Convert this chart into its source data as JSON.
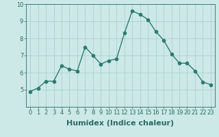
{
  "x": [
    0,
    1,
    2,
    3,
    4,
    5,
    6,
    7,
    8,
    9,
    10,
    11,
    12,
    13,
    14,
    15,
    16,
    17,
    18,
    19,
    20,
    21,
    22,
    23
  ],
  "y": [
    4.9,
    5.1,
    5.5,
    5.5,
    6.4,
    6.2,
    6.1,
    7.5,
    7.0,
    6.5,
    6.7,
    6.8,
    8.3,
    9.6,
    9.4,
    9.1,
    8.4,
    7.9,
    7.1,
    6.55,
    6.55,
    6.1,
    5.45,
    5.3
  ],
  "xlabel": "Humidex (Indice chaleur)",
  "bg_color": "#cce9e7",
  "line_color": "#2d7a6e",
  "grid_color": "#aacfcc",
  "axis_color": "#2d6b60",
  "ylim": [
    4,
    10
  ],
  "xlim": [
    -0.5,
    23.5
  ],
  "yticks": [
    5,
    6,
    7,
    8,
    9,
    10
  ],
  "xticks": [
    0,
    1,
    2,
    3,
    4,
    5,
    6,
    7,
    8,
    9,
    10,
    11,
    12,
    13,
    14,
    15,
    16,
    17,
    18,
    19,
    20,
    21,
    22,
    23
  ],
  "marker_size": 3,
  "line_width": 1.0,
  "xlabel_fontsize": 8,
  "tick_fontsize": 6
}
